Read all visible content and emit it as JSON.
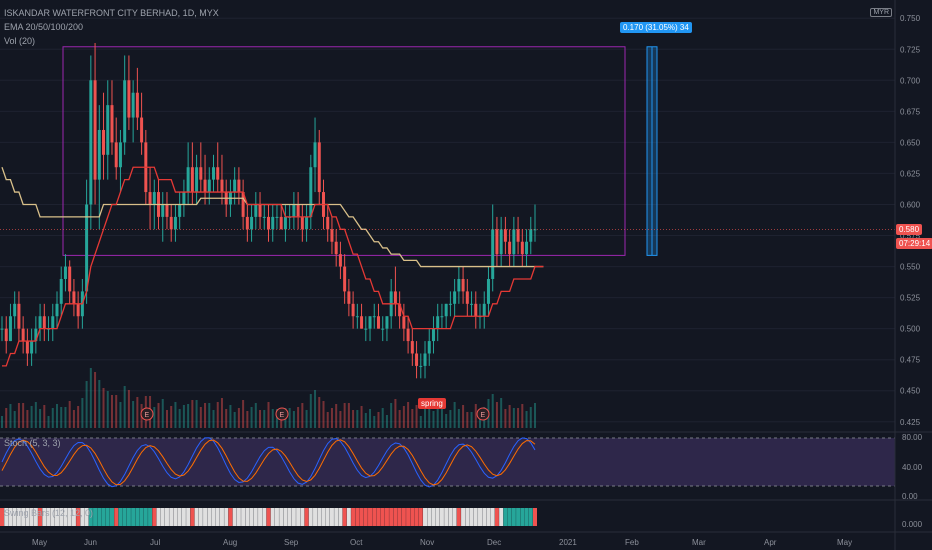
{
  "header": {
    "title": "ISKANDAR WATERFRONT CITY BERHAD, 1D, MYX",
    "ema": "EMA 20/50/100/200",
    "vol": "Vol (20)",
    "currency": "MYR"
  },
  "labels": {
    "measure": "0.170 (31.05%) 34",
    "price": "0.580",
    "countdown": "07:29:14",
    "spring": "spring",
    "earnings": "E"
  },
  "indicators": {
    "stoch": "Stoch (5, 3, 3)",
    "swing": "Swing Bars (12, 12, 0)"
  },
  "colors": {
    "bg": "#131722",
    "up": "#26a69a",
    "down": "#ef5350",
    "rect": "#9c27b0",
    "ema_fast": "#e53935",
    "ema_slow": "#d9c08a",
    "measure": "#2196f3"
  },
  "price_axis": [
    "0.750",
    "0.725",
    "0.700",
    "0.675",
    "0.650",
    "0.625",
    "0.600",
    "0.575",
    "0.550",
    "0.525",
    "0.500",
    "0.475",
    "0.450",
    "0.425"
  ],
  "stoch_axis": [
    "80.00",
    "40.00",
    "0.00"
  ],
  "swing_axis": [
    "0.000"
  ],
  "time_axis": [
    "May",
    "Jun",
    "Jul",
    "Aug",
    "Sep",
    "Oct",
    "Nov",
    "Dec",
    "2021",
    "Feb",
    "Mar",
    "Apr",
    "May"
  ],
  "chart_data": {
    "type": "candlestick",
    "symbol": "ISKANDAR WATERFRONT CITY BERHAD, 1D, MYX",
    "ylim": [
      0.42,
      0.755
    ],
    "last_price": 0.58,
    "box_range": [
      0.559,
      0.727
    ],
    "ohlc": [
      [
        0.5,
        0.51,
        0.49,
        0.5
      ],
      [
        0.5,
        0.51,
        0.48,
        0.49
      ],
      [
        0.49,
        0.52,
        0.49,
        0.51
      ],
      [
        0.51,
        0.53,
        0.5,
        0.52
      ],
      [
        0.52,
        0.53,
        0.49,
        0.5
      ],
      [
        0.5,
        0.51,
        0.48,
        0.49
      ],
      [
        0.49,
        0.5,
        0.47,
        0.48
      ],
      [
        0.48,
        0.5,
        0.47,
        0.49
      ],
      [
        0.49,
        0.51,
        0.48,
        0.5
      ],
      [
        0.5,
        0.52,
        0.49,
        0.51
      ],
      [
        0.51,
        0.52,
        0.49,
        0.5
      ],
      [
        0.5,
        0.51,
        0.49,
        0.5
      ],
      [
        0.5,
        0.52,
        0.49,
        0.51
      ],
      [
        0.51,
        0.53,
        0.5,
        0.52
      ],
      [
        0.52,
        0.55,
        0.51,
        0.54
      ],
      [
        0.54,
        0.56,
        0.53,
        0.55
      ],
      [
        0.55,
        0.555,
        0.52,
        0.53
      ],
      [
        0.53,
        0.54,
        0.51,
        0.52
      ],
      [
        0.52,
        0.53,
        0.5,
        0.51
      ],
      [
        0.51,
        0.54,
        0.5,
        0.53
      ],
      [
        0.53,
        0.62,
        0.52,
        0.6
      ],
      [
        0.6,
        0.72,
        0.58,
        0.7
      ],
      [
        0.7,
        0.73,
        0.6,
        0.62
      ],
      [
        0.62,
        0.68,
        0.58,
        0.66
      ],
      [
        0.66,
        0.69,
        0.62,
        0.64
      ],
      [
        0.64,
        0.7,
        0.62,
        0.68
      ],
      [
        0.68,
        0.7,
        0.64,
        0.65
      ],
      [
        0.65,
        0.67,
        0.62,
        0.63
      ],
      [
        0.63,
        0.66,
        0.61,
        0.65
      ],
      [
        0.65,
        0.72,
        0.64,
        0.7
      ],
      [
        0.7,
        0.72,
        0.66,
        0.67
      ],
      [
        0.67,
        0.7,
        0.65,
        0.69
      ],
      [
        0.69,
        0.71,
        0.66,
        0.67
      ],
      [
        0.67,
        0.69,
        0.64,
        0.65
      ],
      [
        0.65,
        0.66,
        0.6,
        0.61
      ],
      [
        0.61,
        0.63,
        0.58,
        0.6
      ],
      [
        0.6,
        0.62,
        0.58,
        0.61
      ],
      [
        0.61,
        0.62,
        0.58,
        0.59
      ],
      [
        0.59,
        0.61,
        0.57,
        0.6
      ],
      [
        0.6,
        0.61,
        0.58,
        0.59
      ],
      [
        0.59,
        0.6,
        0.57,
        0.58
      ],
      [
        0.58,
        0.6,
        0.57,
        0.59
      ],
      [
        0.59,
        0.61,
        0.58,
        0.6
      ],
      [
        0.6,
        0.62,
        0.59,
        0.61
      ],
      [
        0.61,
        0.65,
        0.6,
        0.63
      ],
      [
        0.63,
        0.65,
        0.6,
        0.61
      ],
      [
        0.61,
        0.64,
        0.6,
        0.63
      ],
      [
        0.63,
        0.65,
        0.61,
        0.62
      ],
      [
        0.62,
        0.64,
        0.6,
        0.61
      ],
      [
        0.61,
        0.63,
        0.6,
        0.62
      ],
      [
        0.62,
        0.64,
        0.61,
        0.63
      ],
      [
        0.63,
        0.65,
        0.61,
        0.62
      ],
      [
        0.62,
        0.64,
        0.6,
        0.61
      ],
      [
        0.61,
        0.62,
        0.59,
        0.6
      ],
      [
        0.6,
        0.62,
        0.59,
        0.61
      ],
      [
        0.61,
        0.63,
        0.6,
        0.62
      ],
      [
        0.62,
        0.63,
        0.6,
        0.61
      ],
      [
        0.61,
        0.62,
        0.58,
        0.59
      ],
      [
        0.59,
        0.6,
        0.57,
        0.58
      ],
      [
        0.58,
        0.6,
        0.57,
        0.59
      ],
      [
        0.59,
        0.61,
        0.58,
        0.6
      ],
      [
        0.6,
        0.61,
        0.58,
        0.59
      ],
      [
        0.59,
        0.6,
        0.58,
        0.59
      ],
      [
        0.59,
        0.6,
        0.57,
        0.58
      ],
      [
        0.58,
        0.6,
        0.57,
        0.59
      ],
      [
        0.59,
        0.6,
        0.58,
        0.59
      ],
      [
        0.59,
        0.6,
        0.58,
        0.58
      ],
      [
        0.58,
        0.6,
        0.57,
        0.59
      ],
      [
        0.59,
        0.6,
        0.58,
        0.59
      ],
      [
        0.59,
        0.61,
        0.58,
        0.6
      ],
      [
        0.6,
        0.61,
        0.58,
        0.59
      ],
      [
        0.59,
        0.6,
        0.57,
        0.58
      ],
      [
        0.58,
        0.6,
        0.57,
        0.59
      ],
      [
        0.59,
        0.64,
        0.58,
        0.63
      ],
      [
        0.63,
        0.67,
        0.61,
        0.65
      ],
      [
        0.65,
        0.66,
        0.6,
        0.61
      ],
      [
        0.61,
        0.62,
        0.58,
        0.59
      ],
      [
        0.59,
        0.6,
        0.57,
        0.58
      ],
      [
        0.58,
        0.59,
        0.56,
        0.57
      ],
      [
        0.57,
        0.58,
        0.55,
        0.56
      ],
      [
        0.56,
        0.57,
        0.54,
        0.55
      ],
      [
        0.55,
        0.56,
        0.52,
        0.53
      ],
      [
        0.53,
        0.54,
        0.51,
        0.52
      ],
      [
        0.52,
        0.53,
        0.5,
        0.51
      ],
      [
        0.51,
        0.52,
        0.5,
        0.51
      ],
      [
        0.51,
        0.52,
        0.5,
        0.5
      ],
      [
        0.5,
        0.51,
        0.49,
        0.5
      ],
      [
        0.5,
        0.51,
        0.49,
        0.51
      ],
      [
        0.51,
        0.52,
        0.5,
        0.51
      ],
      [
        0.51,
        0.52,
        0.5,
        0.5
      ],
      [
        0.5,
        0.51,
        0.49,
        0.5
      ],
      [
        0.5,
        0.51,
        0.49,
        0.51
      ],
      [
        0.51,
        0.54,
        0.5,
        0.53
      ],
      [
        0.53,
        0.55,
        0.51,
        0.52
      ],
      [
        0.52,
        0.53,
        0.5,
        0.51
      ],
      [
        0.51,
        0.52,
        0.49,
        0.5
      ],
      [
        0.5,
        0.51,
        0.48,
        0.49
      ],
      [
        0.49,
        0.5,
        0.47,
        0.48
      ],
      [
        0.48,
        0.49,
        0.46,
        0.47
      ],
      [
        0.47,
        0.48,
        0.46,
        0.47
      ],
      [
        0.47,
        0.49,
        0.46,
        0.48
      ],
      [
        0.48,
        0.5,
        0.47,
        0.49
      ],
      [
        0.49,
        0.51,
        0.48,
        0.5
      ],
      [
        0.5,
        0.52,
        0.49,
        0.51
      ],
      [
        0.51,
        0.52,
        0.5,
        0.51
      ],
      [
        0.51,
        0.52,
        0.5,
        0.52
      ],
      [
        0.52,
        0.53,
        0.51,
        0.52
      ],
      [
        0.52,
        0.54,
        0.51,
        0.53
      ],
      [
        0.53,
        0.55,
        0.52,
        0.54
      ],
      [
        0.54,
        0.55,
        0.52,
        0.53
      ],
      [
        0.53,
        0.54,
        0.51,
        0.52
      ],
      [
        0.52,
        0.53,
        0.51,
        0.52
      ],
      [
        0.52,
        0.53,
        0.5,
        0.51
      ],
      [
        0.51,
        0.52,
        0.5,
        0.51
      ],
      [
        0.51,
        0.53,
        0.5,
        0.52
      ],
      [
        0.52,
        0.55,
        0.51,
        0.54
      ],
      [
        0.54,
        0.6,
        0.53,
        0.58
      ],
      [
        0.58,
        0.59,
        0.55,
        0.56
      ],
      [
        0.56,
        0.59,
        0.55,
        0.58
      ],
      [
        0.58,
        0.59,
        0.56,
        0.57
      ],
      [
        0.57,
        0.58,
        0.55,
        0.56
      ],
      [
        0.56,
        0.59,
        0.55,
        0.58
      ],
      [
        0.58,
        0.59,
        0.56,
        0.57
      ],
      [
        0.57,
        0.58,
        0.55,
        0.56
      ],
      [
        0.56,
        0.58,
        0.55,
        0.57
      ],
      [
        0.57,
        0.59,
        0.56,
        0.58
      ],
      [
        0.58,
        0.6,
        0.57,
        0.58
      ]
    ],
    "ema_fast": [
      0.47,
      0.47,
      0.48,
      0.48,
      0.49,
      0.49,
      0.49,
      0.49,
      0.49,
      0.5,
      0.5,
      0.5,
      0.5,
      0.5,
      0.51,
      0.52,
      0.52,
      0.52,
      0.52,
      0.52,
      0.53,
      0.55,
      0.56,
      0.57,
      0.58,
      0.59,
      0.6,
      0.6,
      0.61,
      0.62,
      0.62,
      0.63,
      0.63,
      0.63,
      0.63,
      0.63,
      0.63,
      0.62,
      0.62,
      0.62,
      0.62,
      0.61,
      0.61,
      0.61,
      0.61,
      0.61,
      0.61,
      0.61,
      0.61,
      0.61,
      0.61,
      0.61,
      0.61,
      0.61,
      0.61,
      0.61,
      0.61,
      0.61,
      0.6,
      0.6,
      0.6,
      0.6,
      0.6,
      0.6,
      0.6,
      0.6,
      0.6,
      0.59,
      0.59,
      0.59,
      0.59,
      0.59,
      0.59,
      0.59,
      0.6,
      0.6,
      0.6,
      0.6,
      0.59,
      0.59,
      0.58,
      0.58,
      0.57,
      0.56,
      0.56,
      0.55,
      0.54,
      0.54,
      0.53,
      0.53,
      0.52,
      0.52,
      0.52,
      0.52,
      0.52,
      0.51,
      0.51,
      0.5,
      0.5,
      0.5,
      0.5,
      0.5,
      0.5,
      0.5,
      0.5,
      0.5,
      0.5,
      0.51,
      0.51,
      0.51,
      0.51,
      0.51,
      0.51,
      0.51,
      0.51,
      0.51,
      0.52,
      0.52,
      0.53,
      0.53,
      0.53,
      0.54,
      0.54,
      0.54,
      0.54,
      0.54,
      0.55,
      0.55,
      0.55
    ],
    "ema_slow": [
      0.63,
      0.62,
      0.62,
      0.61,
      0.61,
      0.6,
      0.6,
      0.6,
      0.6,
      0.59,
      0.59,
      0.59,
      0.59,
      0.59,
      0.59,
      0.59,
      0.59,
      0.59,
      0.59,
      0.59,
      0.59,
      0.59,
      0.59,
      0.59,
      0.6,
      0.6,
      0.6,
      0.6,
      0.6,
      0.6,
      0.6,
      0.6,
      0.6,
      0.6,
      0.6,
      0.6,
      0.6,
      0.6,
      0.6,
      0.6,
      0.6,
      0.6,
      0.6,
      0.6,
      0.6,
      0.6,
      0.6,
      0.605,
      0.605,
      0.605,
      0.605,
      0.605,
      0.605,
      0.605,
      0.605,
      0.605,
      0.605,
      0.605,
      0.6,
      0.6,
      0.6,
      0.6,
      0.6,
      0.6,
      0.6,
      0.6,
      0.6,
      0.6,
      0.6,
      0.6,
      0.6,
      0.6,
      0.6,
      0.6,
      0.6,
      0.6,
      0.6,
      0.6,
      0.6,
      0.6,
      0.6,
      0.595,
      0.59,
      0.59,
      0.585,
      0.58,
      0.58,
      0.575,
      0.57,
      0.57,
      0.565,
      0.565,
      0.56,
      0.56,
      0.56,
      0.555,
      0.555,
      0.555,
      0.555,
      0.55,
      0.55,
      0.55,
      0.55,
      0.55,
      0.55,
      0.55,
      0.55,
      0.55,
      0.55,
      0.55,
      0.55,
      0.55,
      0.55,
      0.55,
      0.55,
      0.55,
      0.55,
      0.55,
      0.55,
      0.55,
      0.55,
      0.55,
      0.55,
      0.55,
      0.55,
      0.55,
      0.55,
      0.55,
      0.55
    ]
  }
}
